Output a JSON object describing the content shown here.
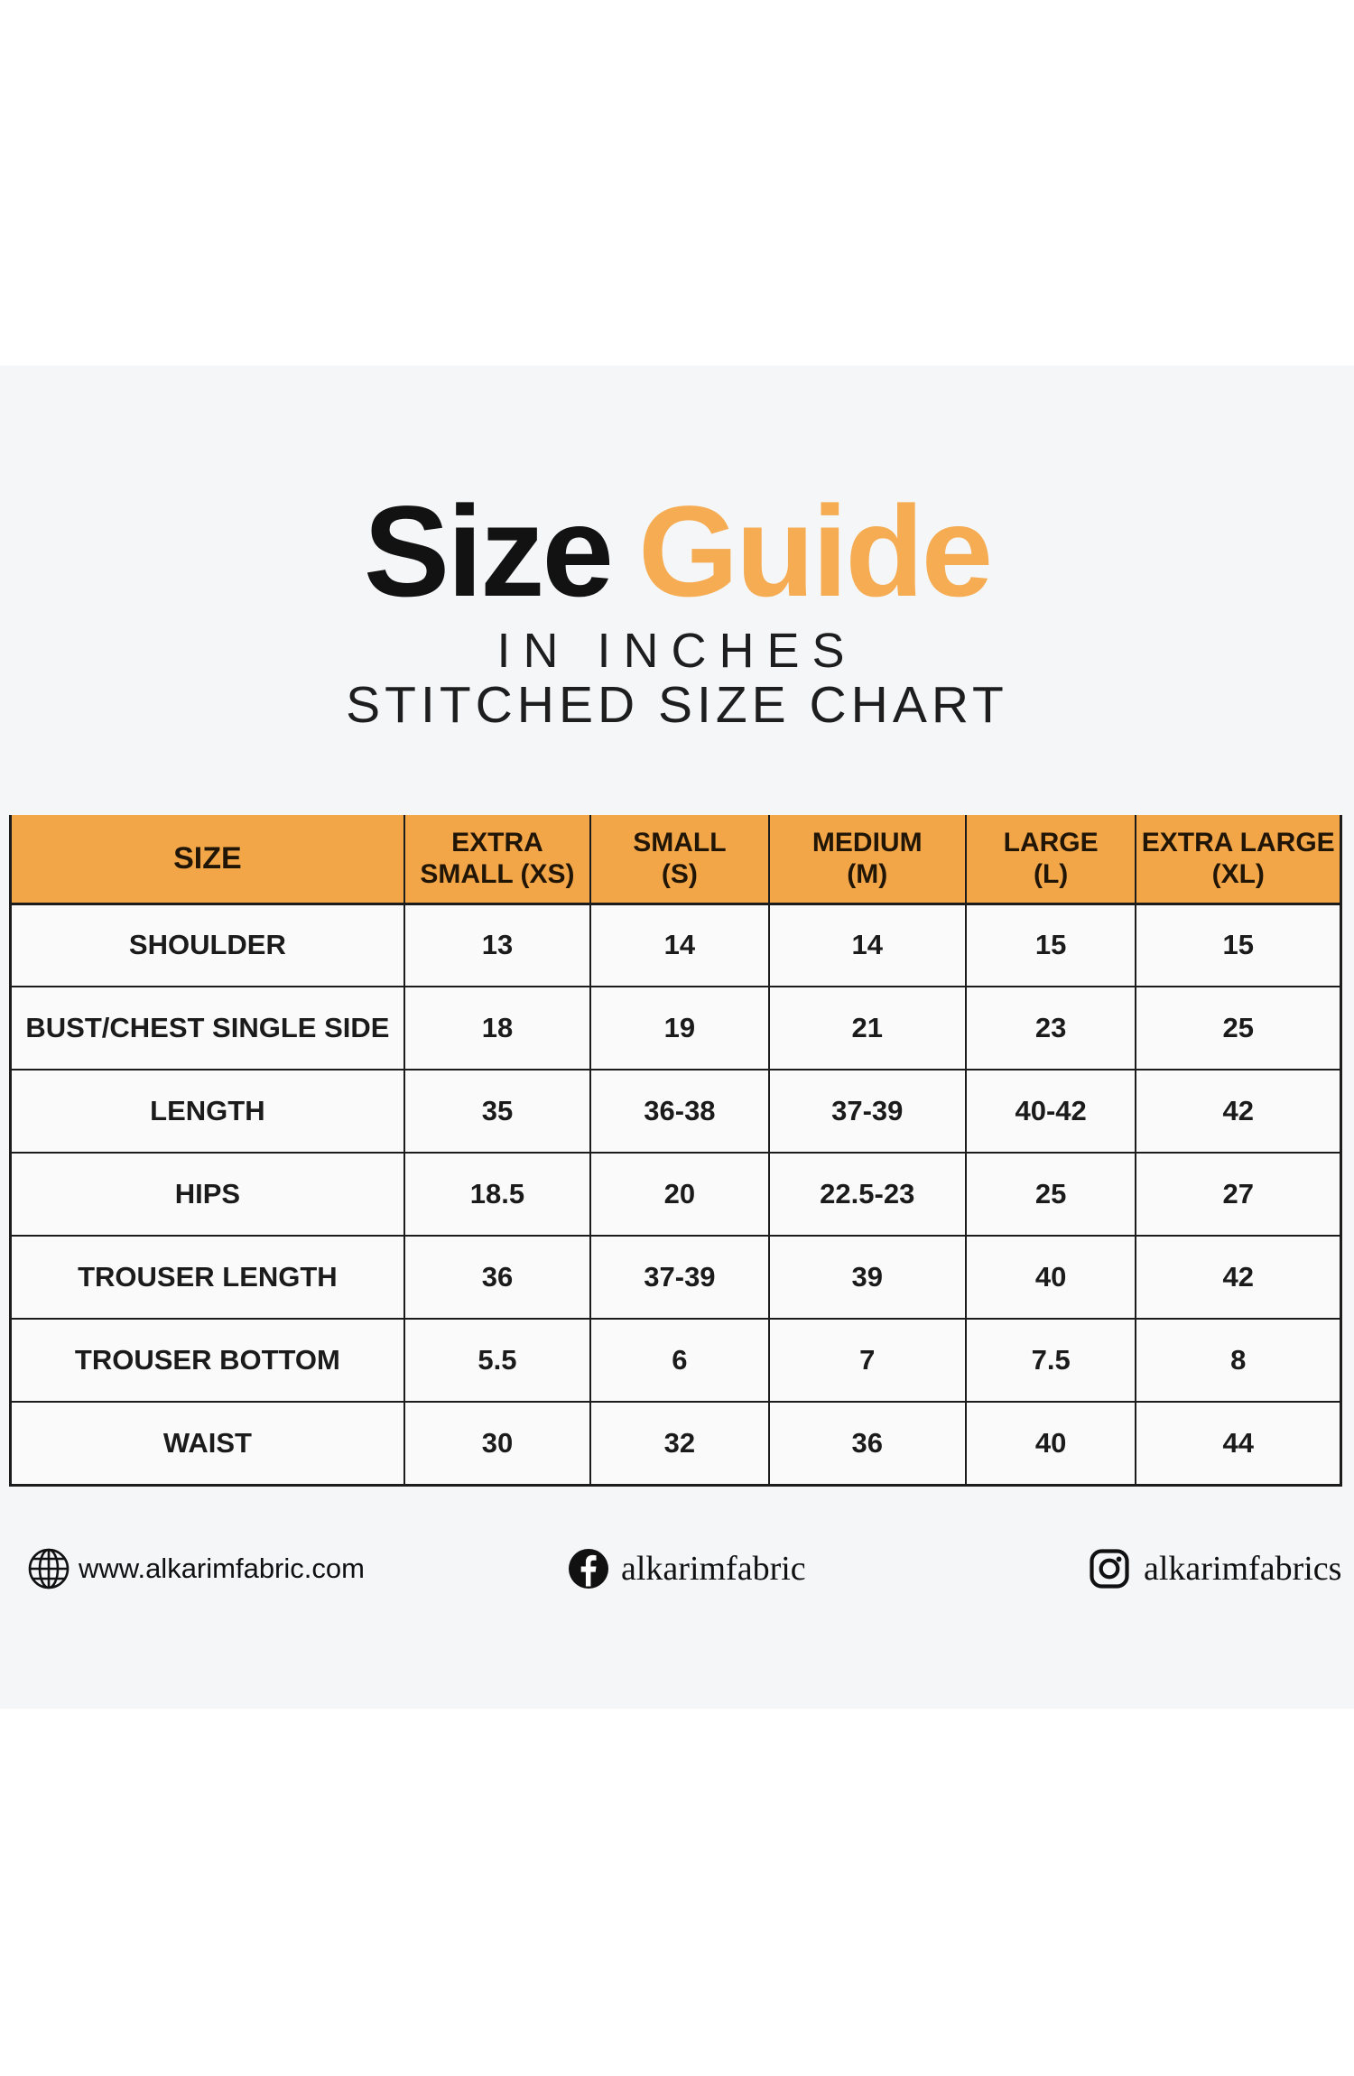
{
  "title": {
    "word_black": "Size",
    "word_orange": "Guide"
  },
  "subtitle_line1": "IN INCHES",
  "subtitle_line2": "STITCHED SIZE CHART",
  "colors": {
    "title_orange": "#F5AC52",
    "header_orange": "#F2A647",
    "table_border": "#1C1C1C",
    "band_background": "#F5F6F8",
    "cell_background": "#FAFAFB"
  },
  "table": {
    "header": [
      {
        "line1": "SIZE",
        "line2": ""
      },
      {
        "line1": "EXTRA",
        "line2": "SMALL (XS)"
      },
      {
        "line1": "SMALL",
        "line2": "(S)"
      },
      {
        "line1": "MEDIUM",
        "line2": "(M)"
      },
      {
        "line1": "LARGE",
        "line2": "(L)"
      },
      {
        "line1": "EXTRA LARGE",
        "line2": "(XL)"
      }
    ],
    "rows": [
      {
        "label": "SHOULDER",
        "values": [
          "13",
          "14",
          "14",
          "15",
          "15"
        ]
      },
      {
        "label": "BUST/CHEST SINGLE SIDE",
        "values": [
          "18",
          "19",
          "21",
          "23",
          "25"
        ]
      },
      {
        "label": "LENGTH",
        "values": [
          "35",
          "36-38",
          "37-39",
          "40-42",
          "42"
        ]
      },
      {
        "label": "HIPS",
        "values": [
          "18.5",
          "20",
          "22.5-23",
          "25",
          "27"
        ]
      },
      {
        "label": "TROUSER LENGTH",
        "values": [
          "36",
          "37-39",
          "39",
          "40",
          "42"
        ]
      },
      {
        "label": "TROUSER BOTTOM",
        "values": [
          "5.5",
          "6",
          "7",
          "7.5",
          "8"
        ]
      },
      {
        "label": "WAIST",
        "values": [
          "30",
          "32",
          "36",
          "40",
          "44"
        ]
      }
    ]
  },
  "footer": {
    "website": {
      "icon": "globe-icon",
      "label": "www.alkarimfabric.com"
    },
    "facebook": {
      "icon": "facebook-icon",
      "label": "alkarimfabric"
    },
    "instagram": {
      "icon": "instagram-icon",
      "label": "alkarimfabrics"
    }
  }
}
